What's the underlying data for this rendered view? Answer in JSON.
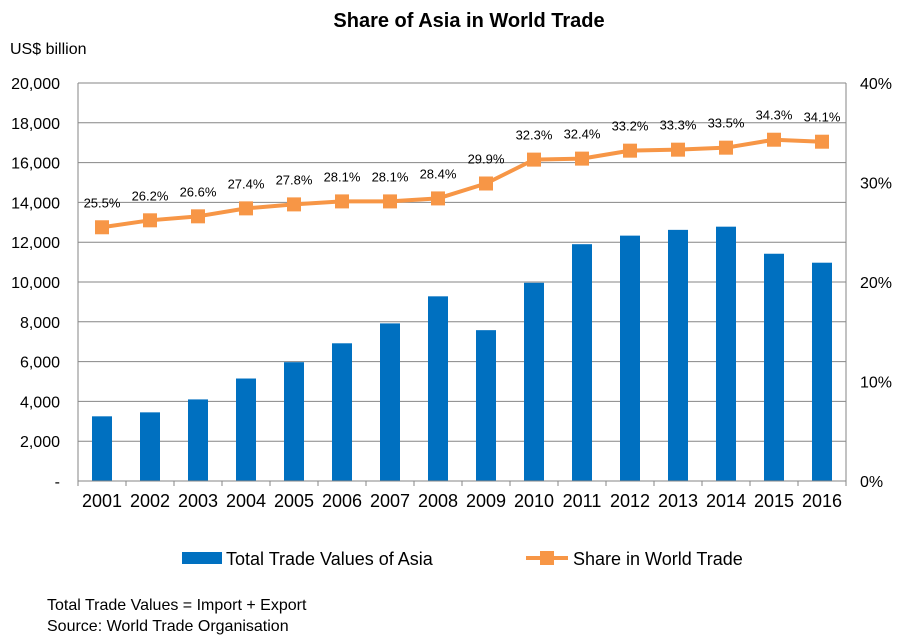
{
  "chart_data": {
    "type": "bar+line",
    "title": "Share of Asia  in World Trade",
    "y_left_label": "US$ billion",
    "categories": [
      "2001",
      "2002",
      "2003",
      "2004",
      "2005",
      "2006",
      "2007",
      "2008",
      "2009",
      "2010",
      "2011",
      "2012",
      "2013",
      "2014",
      "2015",
      "2016"
    ],
    "y_left_ticks": [
      "-",
      "2,000",
      "4,000",
      "6,000",
      "8,000",
      "10,000",
      "12,000",
      "14,000",
      "16,000",
      "18,000",
      "20,000"
    ],
    "y_right_ticks": [
      "0%",
      "10%",
      "20%",
      "30%",
      "40%"
    ],
    "ylim_left": [
      0,
      20000
    ],
    "ylim_right": [
      0,
      40
    ],
    "grid": true,
    "legend_position": "bottom",
    "series": [
      {
        "name": "Total Trade Values of Asia",
        "type": "bar",
        "axis": "left",
        "color": "#0070C0",
        "values": [
          3250,
          3450,
          4100,
          5150,
          5970,
          6920,
          7920,
          9280,
          7580,
          9960,
          11900,
          12330,
          12620,
          12780,
          11420,
          10970
        ]
      },
      {
        "name": "Share in World Trade",
        "type": "line",
        "axis": "right",
        "color": "#F79646",
        "values": [
          25.5,
          26.2,
          26.6,
          27.4,
          27.8,
          28.1,
          28.1,
          28.4,
          29.9,
          32.3,
          32.4,
          33.2,
          33.3,
          33.5,
          34.3,
          34.1
        ],
        "labels": [
          "25.5%",
          "26.2%",
          "26.6%",
          "27.4%",
          "27.8%",
          "28.1%",
          "28.1%",
          "28.4%",
          "29.9%",
          "32.3%",
          "32.4%",
          "33.2%",
          "33.3%",
          "33.5%",
          "34.3%",
          "34.1%"
        ]
      }
    ]
  },
  "notes": {
    "formula": "Total Trade Values = Import + Export",
    "source": "Source: World Trade Organisation"
  }
}
